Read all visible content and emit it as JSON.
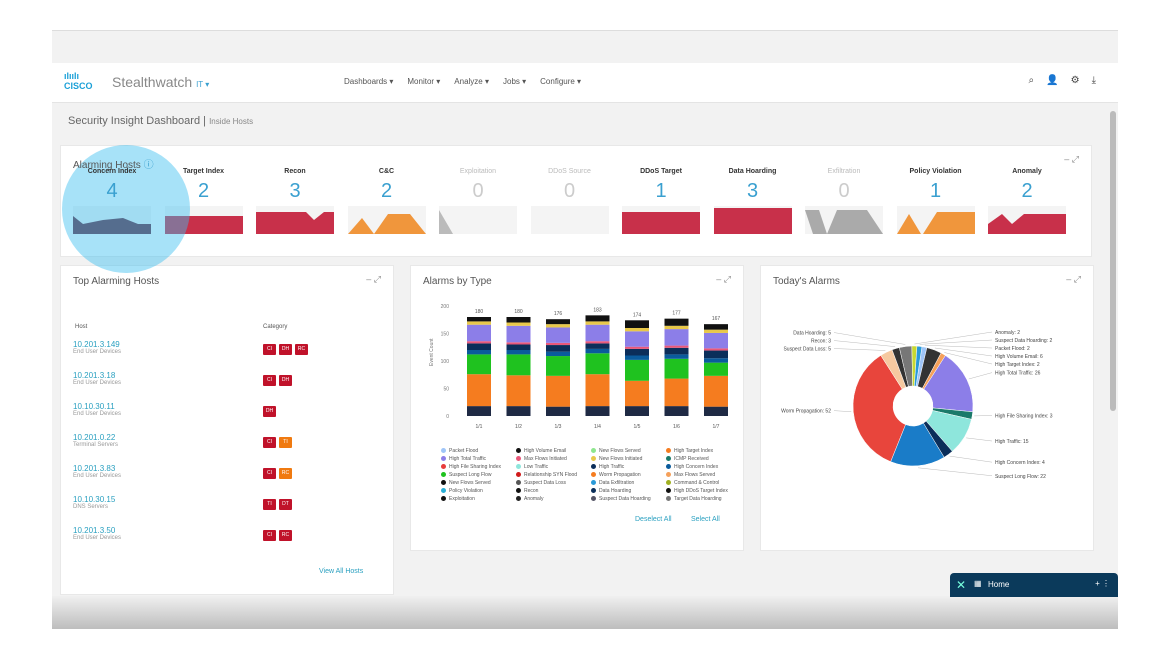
{
  "app": {
    "logo": "cisco",
    "name": "Stealthwatch",
    "env": "IT"
  },
  "nav": [
    "Dashboards",
    "Monitor",
    "Analyze",
    "Jobs",
    "Configure"
  ],
  "header_icons": [
    "search-icon",
    "user-icon",
    "gear-icon",
    "download-icon"
  ],
  "breadcrumb": {
    "title": "Security Insight Dashboard",
    "sub": "Inside Hosts"
  },
  "alarming": {
    "title": "Alarming Hosts",
    "tiles": [
      {
        "label": "Concern Index",
        "value": "4",
        "color": "#6b2a3e",
        "active": true
      },
      {
        "label": "Target Index",
        "value": "2",
        "color": "#c8304a",
        "active": true
      },
      {
        "label": "Recon",
        "value": "3",
        "color": "#c8304a",
        "active": true
      },
      {
        "label": "C&C",
        "value": "2",
        "color": "#f0963c",
        "active": true
      },
      {
        "label": "Exploitation",
        "value": "0",
        "color": "#bbbbbb",
        "active": false
      },
      {
        "label": "DDoS Source",
        "value": "0",
        "color": "#eeeeee",
        "active": false
      },
      {
        "label": "DDoS Target",
        "value": "1",
        "color": "#c8304a",
        "active": true
      },
      {
        "label": "Data Hoarding",
        "value": "3",
        "color": "#c8304a",
        "active": true
      },
      {
        "label": "Exfiltration",
        "value": "0",
        "color": "#aaaaaa",
        "active": false
      },
      {
        "label": "Policy Violation",
        "value": "1",
        "color": "#f0963c",
        "active": true
      },
      {
        "label": "Anomaly",
        "value": "2",
        "color": "#c8304a",
        "active": true
      }
    ]
  },
  "top_hosts": {
    "title": "Top Alarming Hosts",
    "col_host": "Host",
    "col_category": "Category",
    "view_all": "View All Hosts",
    "rows": [
      {
        "ip": "10.201.3.149",
        "group": "End User Devices",
        "badges": [
          [
            "CI",
            "r"
          ],
          [
            "DH",
            "r"
          ],
          [
            "RC",
            "r"
          ]
        ]
      },
      {
        "ip": "10.201.3.18",
        "group": "End User Devices",
        "badges": [
          [
            "CI",
            "r"
          ],
          [
            "DH",
            "r"
          ]
        ]
      },
      {
        "ip": "10.10.30.11",
        "group": "End User Devices",
        "badges": [
          [
            "DH",
            "r"
          ]
        ]
      },
      {
        "ip": "10.201.0.22",
        "group": "Terminal Servers",
        "badges": [
          [
            "CI",
            "r"
          ],
          [
            "TI",
            "o"
          ]
        ]
      },
      {
        "ip": "10.201.3.83",
        "group": "End User Devices",
        "badges": [
          [
            "CI",
            "r"
          ],
          [
            "RC",
            "o"
          ]
        ]
      },
      {
        "ip": "10.10.30.15",
        "group": "DNS Servers",
        "badges": [
          [
            "TI",
            "r"
          ],
          [
            "DT",
            "r"
          ]
        ]
      },
      {
        "ip": "10.201.3.50",
        "group": "End User Devices",
        "badges": [
          [
            "CI",
            "r"
          ],
          [
            "RC",
            "r"
          ]
        ]
      }
    ]
  },
  "alarms_by_type": {
    "title": "Alarms by Type",
    "deselect_all": "Deselect All",
    "select_all": "Select All"
  },
  "chart_data": [
    {
      "type": "bar",
      "stacked": true,
      "ylabel": "Event Count",
      "ylim": [
        0,
        200
      ],
      "yticks": [
        0,
        50,
        100,
        150,
        200
      ],
      "categories": [
        "1/1",
        "1/2",
        "1/3",
        "1/4",
        "1/5",
        "1/6",
        "1/7"
      ],
      "totals": [
        180,
        180,
        176,
        183,
        174,
        177,
        167
      ],
      "series": [
        {
          "name": "Suspect Data Loss",
          "color": "#1f2a44",
          "values": [
            18,
            18,
            17,
            18,
            18,
            18,
            17
          ]
        },
        {
          "name": "Worm Propagation",
          "color": "#f57c1f",
          "values": [
            58,
            56,
            56,
            58,
            46,
            50,
            56
          ]
        },
        {
          "name": "Suspect Long Flow",
          "color": "#1fc21f",
          "values": [
            36,
            38,
            36,
            38,
            38,
            36,
            24
          ]
        },
        {
          "name": "High Concern Index",
          "color": "#0a5b9c",
          "values": [
            8,
            8,
            8,
            8,
            8,
            8,
            8
          ]
        },
        {
          "name": "High Traffic",
          "color": "#0b2e5a",
          "values": [
            12,
            10,
            12,
            10,
            12,
            12,
            14
          ]
        },
        {
          "name": "Max Flows Initiated",
          "color": "#e9587a",
          "values": [
            4,
            4,
            4,
            4,
            4,
            4,
            4
          ]
        },
        {
          "name": "High Total Traffic",
          "color": "#8c7ee8",
          "values": [
            30,
            30,
            28,
            30,
            28,
            30,
            28
          ]
        },
        {
          "name": "Data Exfiltration",
          "color": "#e8c84a",
          "values": [
            6,
            6,
            6,
            6,
            6,
            6,
            6
          ]
        },
        {
          "name": "Exploitation",
          "color": "#111111",
          "values": [
            8,
            10,
            9,
            11,
            14,
            13,
            10
          ]
        }
      ],
      "legend": [
        "Packet Flood",
        "High Volume Email",
        "New Flows Served",
        "High Target Index",
        "High Total Traffic",
        "Max Flows Initiated",
        "New Flows Initiated",
        "ICMP Received",
        "High File Sharing Index",
        "Low Traffic",
        "High Traffic",
        "High Concern Index",
        "Suspect Long Flow",
        "Relationship SYN Flood",
        "Worm Propagation",
        "Max Flows Served",
        "New Flows Served",
        "Suspect Data Loss",
        "Data Exfiltration",
        "Command & Control",
        "Policy Violation",
        "Recon",
        "Data Hoarding",
        "High DDoS Target Index",
        "Exploitation",
        "Anomaly",
        "Suspect Data Hoarding",
        "Target Data Hoarding"
      ]
    },
    {
      "type": "pie",
      "donut": true,
      "slices": [
        {
          "label": "Packet Flood",
          "value": 2,
          "color": "#9fc5f8"
        },
        {
          "label": "High Volume Email",
          "value": 6,
          "color": "#333333"
        },
        {
          "label": "High Target Index",
          "value": 2,
          "color": "#f5a05a"
        },
        {
          "label": "High Total Traffic",
          "value": 26,
          "color": "#8c7ee8"
        },
        {
          "label": "High File Sharing Index",
          "value": 3,
          "color": "#1a7a6a"
        },
        {
          "label": "High Traffic",
          "value": 15,
          "color": "#8ee6dc"
        },
        {
          "label": "High Concern Index",
          "value": 4,
          "color": "#0b2e5a"
        },
        {
          "label": "Suspect Long Flow",
          "value": 22,
          "color": "#1a7cc8"
        },
        {
          "label": "Worm Propagation",
          "value": 52,
          "color": "#e8453c"
        },
        {
          "label": "Suspect Data Loss",
          "value": 5,
          "color": "#f6c9a0"
        },
        {
          "label": "Recon",
          "value": 3,
          "color": "#333333"
        },
        {
          "label": "Data Hoarding",
          "value": 5,
          "color": "#777777"
        },
        {
          "label": "Anomaly",
          "value": 2,
          "color": "#c8d830"
        },
        {
          "label": "Suspect Data Hoarding",
          "value": 2,
          "color": "#2a9ad8"
        }
      ]
    }
  ],
  "todays_alarms": {
    "title": "Today's Alarms"
  },
  "home_widget": {
    "label": "Home"
  }
}
